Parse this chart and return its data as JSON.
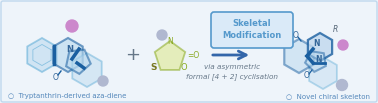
{
  "bg_color": "#eef4fa",
  "border_color": "#c0d8ee",
  "label_left": "○  Tryptanthrin-derived aza-diene",
  "label_right": "○  Novel chiral skeleton",
  "label_color": "#5588bb",
  "box_text_line1": "Skeletal",
  "box_text_line2": "Modification",
  "box_bg": "#daeaf8",
  "box_border": "#5599cc",
  "sub_text_line1": "via asymmetric",
  "sub_text_line2": "formal [4 + 2] cyclisation",
  "sub_text_color": "#667788",
  "plus_color": "#667788",
  "arrow_color": "#3366aa",
  "fig_width": 3.78,
  "fig_height": 1.03,
  "dpi": 100,
  "mol_dark": "#1a5fa0",
  "mol_mid": "#5aaad5",
  "mol_light": "#a8cde8",
  "mol_fill": "#b8d8ee",
  "mid_mol_line": "#8aaa22",
  "mid_mol_fill": "#dde888",
  "cl_color": "#b0b8d0",
  "i_color": "#cc88cc",
  "n_color": "#336699",
  "o_color": "#336699"
}
